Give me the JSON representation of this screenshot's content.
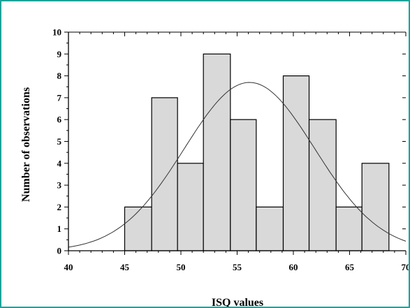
{
  "chart_data": {
    "type": "bar",
    "title": "",
    "xlabel": "ISQ values",
    "ylabel": "Number of observations",
    "xlim": [
      40,
      70
    ],
    "ylim": [
      0,
      10
    ],
    "x_ticks": [
      "40",
      "45",
      "50",
      "55",
      "60",
      "65",
      "70"
    ],
    "y_ticks": [
      "0",
      "1",
      "2",
      "3",
      "4",
      "5",
      "6",
      "7",
      "8",
      "9",
      "10"
    ],
    "bins": [
      {
        "start": 45.0,
        "end": 47.4,
        "value": 2
      },
      {
        "start": 47.4,
        "end": 49.7,
        "value": 7
      },
      {
        "start": 49.7,
        "end": 52.0,
        "value": 4
      },
      {
        "start": 52.0,
        "end": 54.4,
        "value": 9
      },
      {
        "start": 54.4,
        "end": 56.7,
        "value": 6
      },
      {
        "start": 56.7,
        "end": 59.1,
        "value": 2
      },
      {
        "start": 59.1,
        "end": 61.4,
        "value": 8
      },
      {
        "start": 61.4,
        "end": 63.8,
        "value": 6
      },
      {
        "start": 63.8,
        "end": 66.1,
        "value": 2
      },
      {
        "start": 66.1,
        "end": 68.5,
        "value": 4
      }
    ],
    "normal_curve": {
      "mean": 56.1,
      "peak": 7.7,
      "sd": 5.8
    },
    "grid": false,
    "colors": {
      "bar_fill": "#d9d9d9",
      "bar_stroke": "#000000",
      "curve": "#333333",
      "frame": "#1fa39a"
    }
  }
}
